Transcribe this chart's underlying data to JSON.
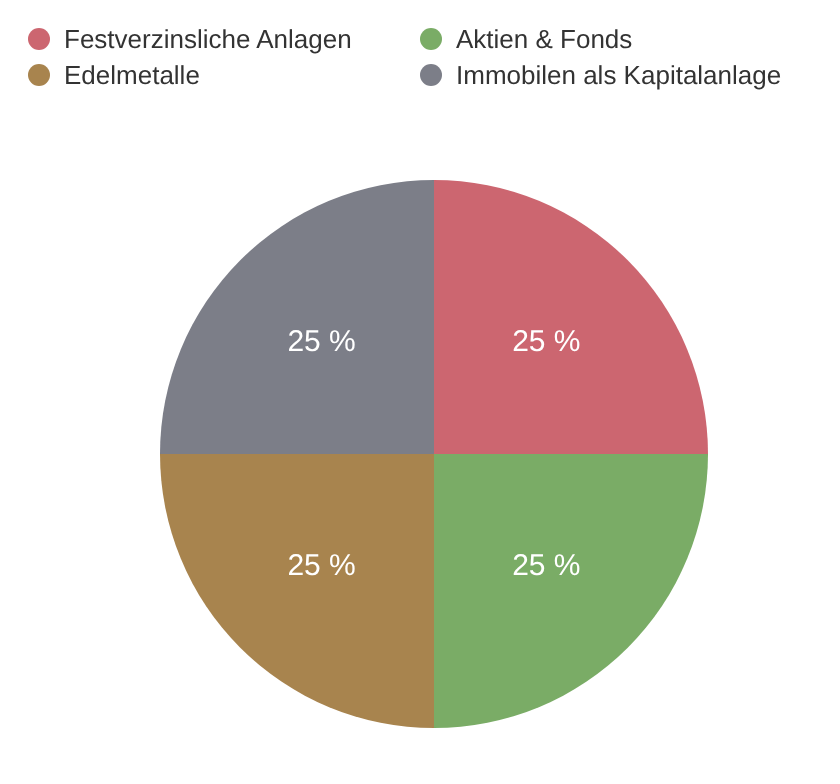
{
  "chart_data": {
    "type": "pie",
    "categories": [
      "Festverzinsliche Anlagen",
      "Aktien & Fonds",
      "Edelmetalle",
      "Immobilen als Kapitalanlage"
    ],
    "values": [
      25,
      25,
      25,
      25
    ],
    "colors": [
      "#cc6670",
      "#7aac66",
      "#a8844e",
      "#7c7e88"
    ],
    "value_labels": [
      "25 %",
      "25 %",
      "25 %",
      "25 %"
    ],
    "legend": "top"
  }
}
